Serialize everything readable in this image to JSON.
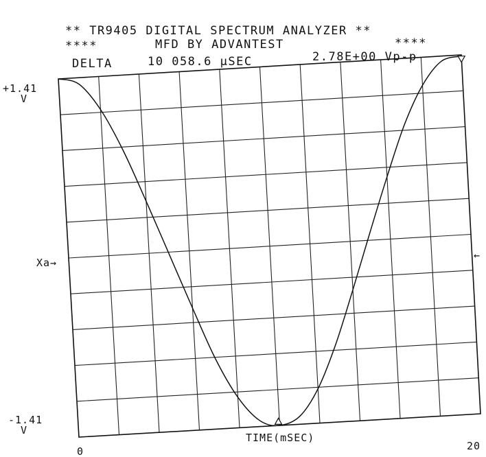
{
  "header": {
    "line1": "** TR9405 DIGITAL SPECTRUM ANALYZER **",
    "line2_left": "****",
    "line2_center": "MFD BY  ADVANTEST",
    "line2_right": "****",
    "line3_delta_label": "DELTA",
    "line3_delta_value": "10 058.6 µSEC",
    "line3_vpp": "2.78E+00 Vp-p"
  },
  "chart_data": {
    "type": "line",
    "title": "** TR9405 DIGITAL SPECTRUM ANALYZER **",
    "xlabel": "TIME(mSEC)",
    "ylabel": "",
    "xlim": [
      0,
      20
    ],
    "ylim": [
      -1.41,
      1.41
    ],
    "grid": true,
    "grid_divisions": {
      "x": 10,
      "y": 10
    },
    "y_tick_labels": {
      "top": "+1.41",
      "top_unit": "V",
      "bottom": "-1.41",
      "bottom_unit": "V"
    },
    "x_tick_labels": {
      "left": "0",
      "right": "20"
    },
    "reference_marker": {
      "label": "Xa→",
      "right_arrow": "←",
      "y": 0
    },
    "markers": [
      {
        "x": 9.94,
        "y": -1.39,
        "symbol": "triangle-up"
      },
      {
        "x": 20.0,
        "y": 1.39,
        "symbol": "triangle-down"
      }
    ],
    "series": [
      {
        "values": [
          [
            0.0,
            1.41
          ],
          [
            1.0,
            1.36
          ],
          [
            2.0,
            1.15
          ],
          [
            3.0,
            0.82
          ],
          [
            4.0,
            0.41
          ],
          [
            5.0,
            -0.02
          ],
          [
            6.0,
            -0.45
          ],
          [
            7.0,
            -0.86
          ],
          [
            8.0,
            -1.17
          ],
          [
            9.0,
            -1.36
          ],
          [
            9.94,
            -1.41
          ],
          [
            11.0,
            -1.35
          ],
          [
            12.0,
            -1.14
          ],
          [
            13.0,
            -0.8
          ],
          [
            14.0,
            -0.38
          ],
          [
            15.0,
            0.06
          ],
          [
            16.0,
            0.49
          ],
          [
            17.0,
            0.89
          ],
          [
            18.0,
            1.19
          ],
          [
            19.0,
            1.37
          ],
          [
            20.0,
            1.4
          ]
        ]
      }
    ]
  }
}
